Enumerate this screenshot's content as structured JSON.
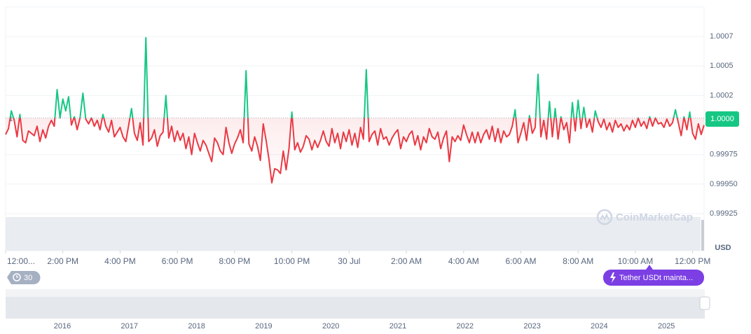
{
  "chart_data": {
    "type": "line",
    "values": [
      0.99992,
      0.99997,
      1.00012,
      1.00004,
      0.9999,
      1.00009,
      0.99987,
      0.99985,
      0.99995,
      0.99993,
      0.99991,
      0.99999,
      0.99986,
      0.99996,
      0.99989,
      0.99999,
      1.00004,
      0.99999,
      1.0003,
      1.00006,
      1.00022,
      1.00012,
      1.00024,
      1.0,
      1.00007,
      0.99996,
      1.00006,
      1.00027,
      1.00005,
      1.00001,
      1.00006,
      0.99999,
      1.00004,
      0.99996,
      1.00009,
      0.99999,
      0.99994,
      1.00004,
      0.9999,
      0.99994,
      0.99998,
      0.9999,
      0.99986,
      1.0,
      1.00014,
      0.99993,
      0.99987,
      1.00002,
      0.99983,
      1.00074,
      0.99986,
      0.99989,
      0.99996,
      0.99982,
      0.99991,
      0.99994,
      1.00025,
      0.99989,
      0.99999,
      0.99986,
      0.99995,
      0.99987,
      0.99993,
      0.9998,
      0.9999,
      0.99975,
      0.99993,
      0.99985,
      0.99978,
      0.99987,
      0.99983,
      0.99976,
      0.99969,
      0.99989,
      0.99985,
      0.99978,
      0.99975,
      0.99998,
      0.99985,
      0.99976,
      0.99984,
      0.99989,
      0.99996,
      0.99985,
      1.00046,
      0.99984,
      0.99978,
      0.9999,
      0.99982,
      0.9997,
      1.00001,
      0.99987,
      0.99971,
      0.99951,
      0.99963,
      0.99962,
      0.99959,
      0.99978,
      0.99962,
      0.9998,
      1.00011,
      0.99979,
      0.99985,
      0.99977,
      0.99982,
      0.99991,
      0.99988,
      0.99979,
      0.99987,
      0.99981,
      0.99987,
      0.99995,
      0.99986,
      0.99982,
      0.99997,
      0.99985,
      0.99993,
      0.9998,
      0.99994,
      0.99986,
      0.99996,
      0.99983,
      0.99993,
      0.99981,
      0.99998,
      0.99988,
      1.00047,
      0.99986,
      0.99992,
      0.99995,
      0.99983,
      0.99997,
      0.99988,
      0.9999,
      0.99983,
      0.99989,
      0.99993,
      0.99996,
      0.9998,
      0.9999,
      0.99986,
      0.99992,
      0.99995,
      0.99983,
      0.99991,
      0.99979,
      0.9999,
      0.99985,
      0.99997,
      0.9999,
      0.99988,
      0.99994,
      0.9998,
      0.99989,
      0.99995,
      0.99969,
      0.9999,
      0.99986,
      0.99991,
      0.99987,
      1.0,
      0.99992,
      0.99985,
      0.99994,
      0.99985,
      0.99994,
      0.99985,
      0.99992,
      0.99996,
      0.99988,
      0.99999,
      0.99986,
      0.99997,
      0.99985,
      0.99995,
      0.9999,
      0.99992,
      0.99999,
      1.00013,
      0.99985,
      0.99993,
      1.00002,
      0.99987,
      1.00008,
      0.99993,
      0.99998,
      1.00043,
      0.9999,
      1.00004,
      0.99988,
      1.0002,
      0.9999,
      1.00014,
      0.99988,
      1.00007,
      0.99996,
      1.00002,
      0.99985,
      1.00019,
      0.99995,
      1.00021,
      0.99997,
      1.00015,
      0.99998,
      1.00005,
      0.99994,
      1.00012,
      1.00003,
      0.99998,
      1.00005,
      0.99996,
      1.00002,
      0.99994,
      1.00004,
      0.99998,
      1.00001,
      0.99995,
      1.0,
      0.99996,
      1.00004,
      0.99998,
      1.00006,
      0.99999,
      1.00003,
      0.99997,
      1.00007,
      0.99999,
      1.00006,
      1.00001,
      1.00002,
      0.99998,
      1.00005,
      0.99999,
      1.00002,
      1.00013,
      1.00002,
      0.99991,
      1.00007,
      0.99996,
      1.00011,
      0.99993,
      0.99988,
      1.00001,
      0.99992,
      1.0
    ],
    "up_color": "#16c784",
    "down_color": "#ea3943",
    "baseline": 1.00006,
    "baseline_label": "1",
    "xlim": [
      0,
      244
    ],
    "xticks": [
      {
        "value": 0,
        "label": "12:00..."
      },
      {
        "value": 20,
        "label": "2:00 PM"
      },
      {
        "value": 40,
        "label": "4:00 PM"
      },
      {
        "value": 60,
        "label": "6:00 PM"
      },
      {
        "value": 80,
        "label": "8:00 PM"
      },
      {
        "value": 100,
        "label": "10:00 PM"
      },
      {
        "value": 120,
        "label": "30 Jul"
      },
      {
        "value": 140,
        "label": "2:00 AM"
      },
      {
        "value": 160,
        "label": "4:00 AM"
      },
      {
        "value": 180,
        "label": "6:00 AM"
      },
      {
        "value": 200,
        "label": "8:00 AM"
      },
      {
        "value": 220,
        "label": "10:00 AM"
      },
      {
        "value": 240,
        "label": "12:00 PM"
      }
    ],
    "ylim": [
      0.99925,
      1.001
    ],
    "yticks": [
      {
        "value": 1.00075,
        "label": "1.0007"
      },
      {
        "value": 1.0005,
        "label": "1.0005"
      },
      {
        "value": 1.00025,
        "label": "1.0002"
      },
      {
        "value": 0.99975,
        "label": "0.99975"
      },
      {
        "value": 0.9995,
        "label": "0.99950"
      },
      0.99925
    ],
    "grid": true,
    "price_label": "1.0000",
    "currency": "USD",
    "watermark": "CoinMarketCap",
    "interval_label": "30",
    "event_label": "Tether USDt mainta...",
    "navigator_years": [
      "2016",
      "2017",
      "2018",
      "2019",
      "2020",
      "2021",
      "2022",
      "2023",
      "2024",
      "2025"
    ]
  }
}
